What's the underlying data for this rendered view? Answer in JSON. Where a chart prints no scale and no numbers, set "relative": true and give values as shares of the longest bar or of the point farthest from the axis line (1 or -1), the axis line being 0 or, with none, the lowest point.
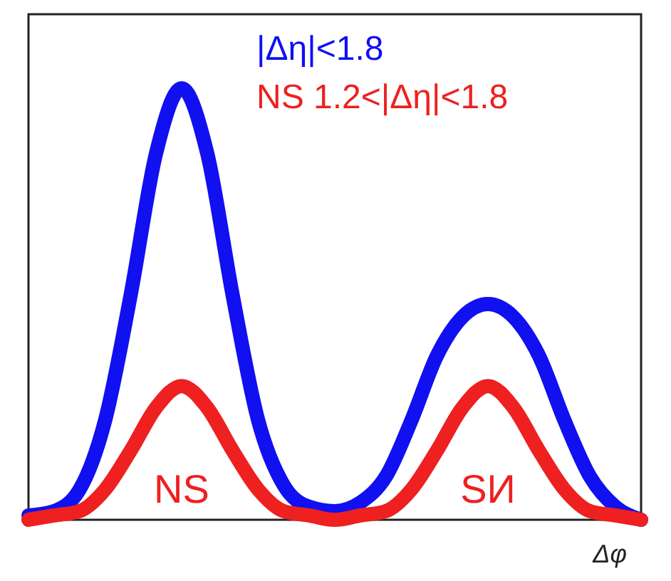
{
  "chart_data": {
    "type": "line",
    "relative": true,
    "xlabel": "Δφ",
    "legend": "top right",
    "marker": "none",
    "line_style": "solid",
    "tick_labels": false,
    "categories": [
      null,
      null,
      null,
      null,
      null,
      null,
      null,
      null,
      null,
      null,
      null,
      null,
      null,
      null,
      null,
      null,
      null,
      null,
      null,
      null,
      null,
      null,
      null,
      null,
      null
    ],
    "series": [
      {
        "name": "|Δη|<1.8",
        "color": "#1010f0",
        "values": [
          0.01,
          0.02,
          0.07,
          0.23,
          0.52,
          0.85,
          1,
          0.85,
          0.52,
          0.23,
          0.08,
          0.03,
          0.02,
          0.04,
          0.1,
          0.23,
          0.38,
          0.47,
          0.5,
          0.47,
          0.38,
          0.23,
          0.1,
          0.03,
          0
        ]
      },
      {
        "name": "NS 1.2<|Δη|<1.8",
        "color": "#ee2020",
        "values": [
          0,
          0.01,
          0.02,
          0.07,
          0.16,
          0.26,
          0.31,
          0.26,
          0.16,
          0.07,
          0.02,
          0.01,
          0,
          0.01,
          0.02,
          0.07,
          0.16,
          0.26,
          0.31,
          0.26,
          0.16,
          0.07,
          0.02,
          0.01,
          0
        ]
      }
    ],
    "annotations": [
      "NS",
      "SИ"
    ]
  }
}
